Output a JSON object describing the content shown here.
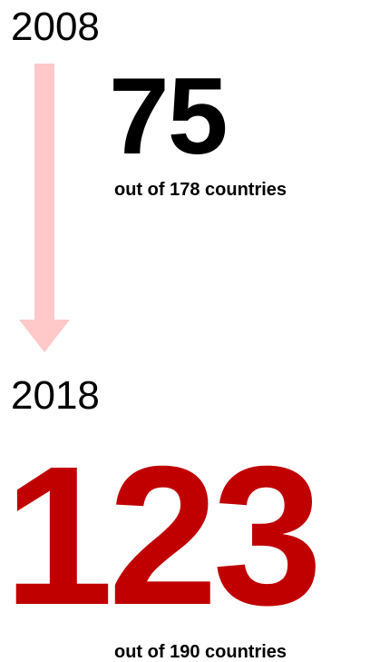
{
  "start": {
    "year": "2008",
    "rank": "75",
    "caption": "out of 178 countries"
  },
  "end": {
    "year": "2018",
    "rank": "123",
    "caption": "out of 190 countries"
  },
  "colors": {
    "arrow": "#ffc9c9",
    "highlight": "#c00000",
    "text": "#000000"
  },
  "icons": {
    "arrow": "down-arrow-icon"
  }
}
